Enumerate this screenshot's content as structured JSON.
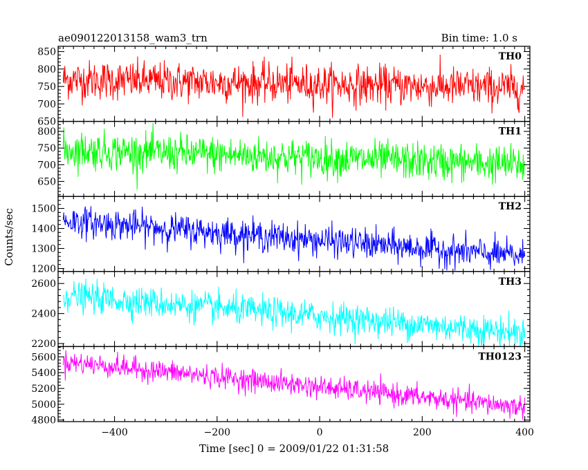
{
  "chart_data": {
    "type": "line",
    "title_left": "ae090122013158_wam3_trn",
    "title_right": "Bin time: 1.0 s",
    "xlabel": "Time [sec] 0 = 2009/01/22 01:31:58",
    "ylabel": "Counts/sec",
    "xlim": [
      -510,
      410
    ],
    "x_ticks": [
      -400,
      -200,
      0,
      200,
      400
    ],
    "panels": [
      {
        "name": "TH0",
        "color": "#ff0000",
        "ylim": [
          650,
          865
        ],
        "y_ticks": [
          650,
          700,
          750,
          800,
          850
        ],
        "trend_x": [
          -500,
          400
        ],
        "trend_y": [
          770,
          745
        ],
        "noise": 28
      },
      {
        "name": "TH1",
        "color": "#00ff00",
        "ylim": [
          605,
          830
        ],
        "y_ticks": [
          650,
          700,
          750,
          800
        ],
        "trend_x": [
          -500,
          400
        ],
        "trend_y": [
          745,
          700
        ],
        "noise": 28
      },
      {
        "name": "TH2",
        "color": "#0000ff",
        "ylim": [
          1185,
          1560
        ],
        "y_ticks": [
          1200,
          1300,
          1400,
          1500
        ],
        "trend_x": [
          -500,
          400
        ],
        "trend_y": [
          1440,
          1260
        ],
        "noise": 38
      },
      {
        "name": "TH3",
        "color": "#00ffff",
        "ylim": [
          2180,
          2680
        ],
        "y_ticks": [
          2200,
          2400,
          2600
        ],
        "trend_x": [
          -500,
          400
        ],
        "trend_y": [
          2520,
          2270
        ],
        "noise": 50
      },
      {
        "name": "TH0123",
        "color": "#ff00ff",
        "ylim": [
          4780,
          5730
        ],
        "y_ticks": [
          4800,
          5000,
          5200,
          5400,
          5600
        ],
        "trend_x": [
          -500,
          400
        ],
        "trend_y": [
          5540,
          4960
        ],
        "noise": 70
      }
    ]
  }
}
